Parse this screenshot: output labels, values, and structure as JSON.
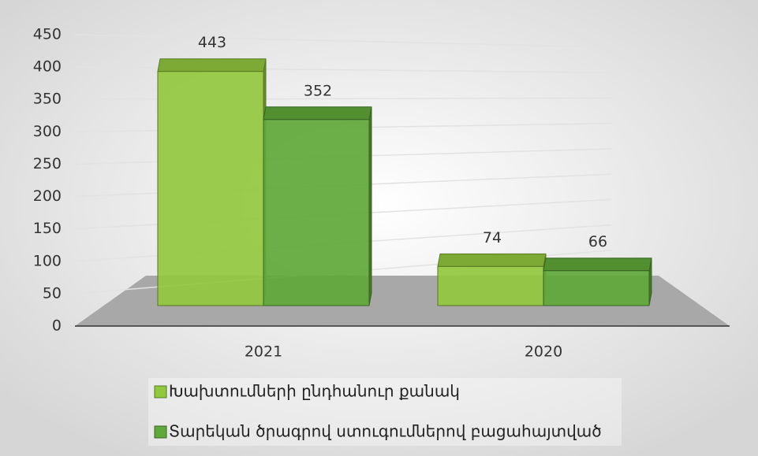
{
  "chart_data": {
    "type": "bar3d",
    "categories": [
      "2021",
      "2020"
    ],
    "series": [
      {
        "name": "Խախտումների ընդհանուր քանակ",
        "color": "#92c83e",
        "values": [
          443,
          74
        ]
      },
      {
        "name": "Տարեկան ծրագրով ստուգումներով բացահայտված",
        "color": "#5fa83a",
        "values": [
          352,
          66
        ]
      }
    ],
    "ylim": [
      0,
      450
    ],
    "yticks": [
      0,
      50,
      100,
      150,
      200,
      250,
      300,
      350,
      400,
      450
    ],
    "grid": true,
    "legend": "bottom"
  }
}
